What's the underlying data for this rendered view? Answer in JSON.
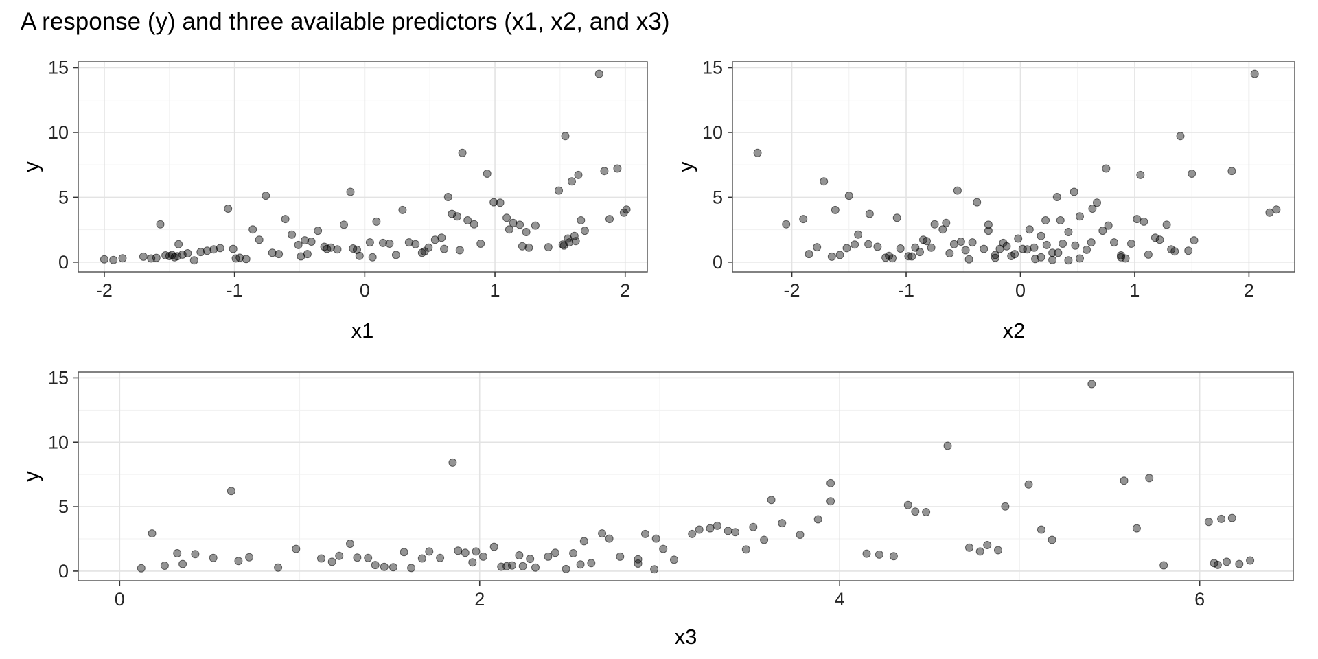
{
  "title": "A response (y) and three available predictors (x1, x2, and x3)",
  "chart_data": {
    "type": "scatter",
    "description": "Three scatterplots of the same response y against predictors x1, x2, x3",
    "style": {
      "point_color": "#000000",
      "point_fill_opacity": 0.42,
      "point_stroke_opacity": 0.55,
      "grid_major_color": "#e3e3e3",
      "grid_minor_color": "#f1f1f1",
      "panel_border_color": "#4d4d4d",
      "tick_color": "#333333",
      "background": "#ffffff"
    },
    "panels": [
      {
        "xlabel": "x1",
        "ylabel": "y",
        "x_index": 0,
        "y_index": 3,
        "xlim": [
          -2.2,
          2.17
        ],
        "ylim": [
          -0.75,
          15.45
        ],
        "xticks": [
          -2,
          -1,
          0,
          1,
          2
        ],
        "yticks": [
          0,
          5,
          10,
          15
        ],
        "x_minor": [
          -1.5,
          -0.5,
          0.5,
          1.5
        ],
        "y_minor": [
          2.5,
          7.5,
          12.5
        ]
      },
      {
        "xlabel": "x2",
        "ylabel": "y",
        "x_index": 1,
        "y_index": 3,
        "xlim": [
          -2.52,
          2.4
        ],
        "ylim": [
          -0.75,
          15.45
        ],
        "xticks": [
          -2,
          -1,
          0,
          1,
          2
        ],
        "yticks": [
          0,
          5,
          10,
          15
        ],
        "x_minor": [
          -1.5,
          -0.5,
          0.5,
          1.5
        ],
        "y_minor": [
          2.5,
          7.5,
          12.5
        ]
      },
      {
        "xlabel": "x3",
        "ylabel": "y",
        "x_index": 2,
        "y_index": 3,
        "xlim": [
          -0.23,
          6.52
        ],
        "ylim": [
          -0.75,
          15.45
        ],
        "xticks": [
          0,
          2,
          4,
          6
        ],
        "yticks": [
          0,
          5,
          10,
          15
        ],
        "x_minor": [
          1,
          3,
          5
        ],
        "y_minor": [
          2.5,
          7.5,
          12.5
        ]
      }
    ],
    "columns": [
      "x1",
      "x2",
      "x3",
      "y"
    ],
    "observations": [
      [
        -2.0,
        -0.45,
        0.12,
        0.22
      ],
      [
        -1.93,
        0.28,
        2.48,
        0.16
      ],
      [
        -1.86,
        -1.12,
        1.52,
        0.3
      ],
      [
        -1.64,
        0.52,
        2.31,
        0.28
      ],
      [
        -1.6,
        -0.22,
        1.47,
        0.33
      ],
      [
        -1.57,
        -2.05,
        0.18,
        2.92
      ],
      [
        -1.53,
        0.88,
        2.56,
        0.52
      ],
      [
        -1.5,
        -0.08,
        1.42,
        0.47
      ],
      [
        -1.46,
        0.18,
        2.24,
        0.38
      ],
      [
        -1.43,
        -1.33,
        0.32,
        1.38
      ],
      [
        -1.4,
        1.12,
        2.88,
        0.58
      ],
      [
        -1.36,
        -0.62,
        1.96,
        0.68
      ],
      [
        -1.31,
        0.42,
        2.97,
        0.14
      ],
      [
        -1.26,
        -0.88,
        0.66,
        0.78
      ],
      [
        -1.21,
        1.47,
        3.08,
        0.88
      ],
      [
        -1.16,
        0.06,
        1.12,
        0.98
      ],
      [
        -1.11,
        -1.52,
        0.72,
        1.08
      ],
      [
        -1.05,
        0.63,
        6.18,
        4.12
      ],
      [
        -1.01,
        -0.32,
        1.78,
        1.02
      ],
      [
        -0.99,
        0.92,
        0.88,
        0.28
      ],
      [
        -0.96,
        -1.18,
        2.12,
        0.34
      ],
      [
        -0.91,
        0.13,
        1.62,
        0.24
      ],
      [
        -0.86,
        -0.68,
        2.72,
        2.52
      ],
      [
        -0.81,
        1.22,
        0.98,
        1.72
      ],
      [
        -0.76,
        -1.5,
        4.38,
        5.12
      ],
      [
        -0.71,
        0.33,
        1.18,
        0.72
      ],
      [
        -0.66,
        -0.05,
        2.62,
        0.62
      ],
      [
        -0.61,
        1.02,
        3.28,
        3.32
      ],
      [
        -0.56,
        -1.42,
        1.28,
        2.12
      ],
      [
        -0.51,
        0.23,
        0.42,
        1.32
      ],
      [
        -0.49,
        -0.95,
        2.18,
        0.44
      ],
      [
        -0.46,
        1.52,
        3.48,
        1.68
      ],
      [
        -0.41,
        -0.52,
        1.88,
        1.58
      ],
      [
        -0.36,
        0.72,
        3.58,
        2.42
      ],
      [
        -0.31,
        -1.25,
        1.22,
        1.18
      ],
      [
        -0.29,
        0.02,
        0.52,
        1.02
      ],
      [
        -0.26,
        -0.78,
        2.02,
        1.12
      ],
      [
        -0.21,
        1.32,
        1.68,
        0.98
      ],
      [
        -0.16,
        -0.28,
        3.18,
        2.88
      ],
      [
        -0.11,
        0.47,
        3.95,
        5.42
      ],
      [
        -0.09,
        -1.05,
        1.32,
        1.05
      ],
      [
        -0.06,
        0.58,
        2.28,
        0.95
      ],
      [
        0.04,
        -0.42,
        1.72,
        1.52
      ],
      [
        0.09,
        1.08,
        3.38,
        3.12
      ],
      [
        0.14,
        -0.15,
        1.58,
        1.48
      ],
      [
        0.19,
        0.37,
        2.42,
        1.42
      ],
      [
        0.29,
        -1.62,
        3.88,
        4.02
      ],
      [
        0.34,
        0.82,
        1.98,
        1.52
      ],
      [
        0.39,
        -0.58,
        2.52,
        1.38
      ],
      [
        0.49,
        0.12,
        2.78,
        1.12
      ],
      [
        0.54,
        -0.85,
        3.02,
        1.72
      ],
      [
        0.59,
        1.18,
        2.08,
        1.88
      ],
      [
        0.61,
        -0.18,
        1.38,
        1.02
      ],
      [
        0.64,
        0.32,
        4.92,
        5.02
      ],
      [
        0.67,
        -1.32,
        3.68,
        3.72
      ],
      [
        0.71,
        0.52,
        3.32,
        3.52
      ],
      [
        0.73,
        -0.48,
        2.88,
        0.92
      ],
      [
        0.75,
        -2.3,
        1.85,
        8.42
      ],
      [
        0.79,
        0.22,
        3.22,
        3.22
      ],
      [
        0.84,
        -0.75,
        2.68,
        2.92
      ],
      [
        0.89,
        0.97,
        1.92,
        1.42
      ],
      [
        0.99,
        -0.38,
        4.42,
        4.62
      ],
      [
        1.04,
        0.67,
        4.48,
        4.58
      ],
      [
        1.09,
        -1.08,
        3.52,
        3.42
      ],
      [
        1.11,
        0.08,
        2.98,
        2.52
      ],
      [
        1.14,
        -0.65,
        3.42,
        3.02
      ],
      [
        1.19,
        1.28,
        2.92,
        2.88
      ],
      [
        1.21,
        -0.12,
        2.22,
        1.22
      ],
      [
        1.24,
        0.42,
        2.58,
        2.32
      ],
      [
        1.26,
        -0.92,
        2.38,
        1.12
      ],
      [
        1.31,
        0.77,
        3.78,
        2.82
      ],
      [
        1.49,
        -0.55,
        3.62,
        5.52
      ],
      [
        1.54,
        1.4,
        4.6,
        9.72
      ],
      [
        1.56,
        -0.02,
        4.72,
        1.82
      ],
      [
        1.57,
        0.62,
        4.78,
        1.52
      ],
      [
        1.59,
        -1.72,
        0.62,
        6.22
      ],
      [
        1.61,
        0.18,
        4.82,
        2.02
      ],
      [
        1.62,
        -0.82,
        4.88,
        1.62
      ],
      [
        1.64,
        1.05,
        5.05,
        6.72
      ],
      [
        1.66,
        0.35,
        5.12,
        3.22
      ],
      [
        1.69,
        -0.28,
        5.18,
        2.42
      ],
      [
        1.8,
        2.05,
        5.4,
        14.52
      ],
      [
        1.84,
        1.85,
        5.58,
        7.02
      ],
      [
        1.88,
        -1.9,
        5.65,
        3.32
      ],
      [
        1.94,
        0.75,
        5.72,
        7.22
      ],
      [
        1.99,
        2.18,
        6.05,
        3.82
      ],
      [
        2.01,
        2.24,
        6.12,
        4.05
      ],
      [
        1.52,
        -1.45,
        4.15,
        1.35
      ],
      [
        1.53,
        0.48,
        4.22,
        1.28
      ],
      [
        -1.48,
        -1.58,
        0.35,
        0.55
      ],
      [
        -1.44,
        -0.98,
        5.8,
        0.45
      ],
      [
        -0.44,
        -1.85,
        6.08,
        0.62
      ],
      [
        0.44,
        0.28,
        6.15,
        0.72
      ],
      [
        0.24,
        -0.22,
        6.22,
        0.55
      ],
      [
        0.46,
        1.35,
        6.28,
        0.82
      ],
      [
        -0.04,
        -1.15,
        6.1,
        0.48
      ],
      [
        0.06,
        0.88,
        2.15,
        0.38
      ],
      [
        -1.7,
        -1.65,
        0.25,
        0.42
      ],
      [
        0.94,
        1.5,
        3.95,
        6.82
      ],
      [
        1.41,
        -1.78,
        4.3,
        1.15
      ]
    ]
  }
}
